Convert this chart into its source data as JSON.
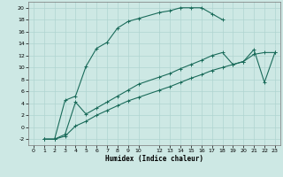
{
  "xlabel": "Humidex (Indice chaleur)",
  "bg_color": "#cde8e4",
  "line_color": "#1a6b5a",
  "grid_color": "#b0d4d0",
  "xlim": [
    -0.5,
    23.5
  ],
  "ylim": [
    -3,
    21
  ],
  "xticks": [
    0,
    1,
    2,
    3,
    4,
    5,
    6,
    7,
    8,
    9,
    10,
    12,
    13,
    14,
    15,
    16,
    17,
    18,
    19,
    20,
    21,
    22,
    23
  ],
  "yticks": [
    -2,
    0,
    2,
    4,
    6,
    8,
    10,
    12,
    14,
    16,
    18,
    20
  ],
  "curve1_x": [
    1,
    2,
    3,
    4,
    5,
    6,
    7,
    8,
    9,
    10,
    12,
    13,
    14,
    15,
    16,
    17,
    18
  ],
  "curve1_y": [
    -2,
    -2,
    4.5,
    5.2,
    10.2,
    13.2,
    14.2,
    16.6,
    17.7,
    18.2,
    19.2,
    19.5,
    20.0,
    20.0,
    20.0,
    19.0,
    18.0
  ],
  "curve2_x": [
    1,
    2,
    3,
    4,
    5,
    6,
    7,
    8,
    9,
    10,
    12,
    13,
    14,
    15,
    16,
    17,
    18,
    19,
    20,
    21,
    22,
    23
  ],
  "curve2_y": [
    -2,
    -2,
    -1.5,
    0.2,
    1.0,
    2.0,
    2.8,
    3.6,
    4.4,
    5.0,
    6.2,
    6.8,
    7.5,
    8.2,
    8.8,
    9.5,
    10.0,
    10.5,
    11.0,
    12.2,
    12.5,
    12.5
  ],
  "curve3_x": [
    1,
    2,
    3,
    4,
    5,
    6,
    7,
    8,
    9,
    10,
    12,
    13,
    14,
    15,
    16,
    17,
    18,
    19,
    20,
    21,
    22,
    23
  ],
  "curve3_y": [
    -2,
    -2,
    -1.2,
    4.2,
    2.2,
    3.2,
    4.2,
    5.2,
    6.2,
    7.2,
    8.4,
    9.0,
    9.8,
    10.5,
    11.2,
    12.0,
    12.5,
    10.5,
    11.0,
    13.0,
    7.5,
    12.5
  ]
}
